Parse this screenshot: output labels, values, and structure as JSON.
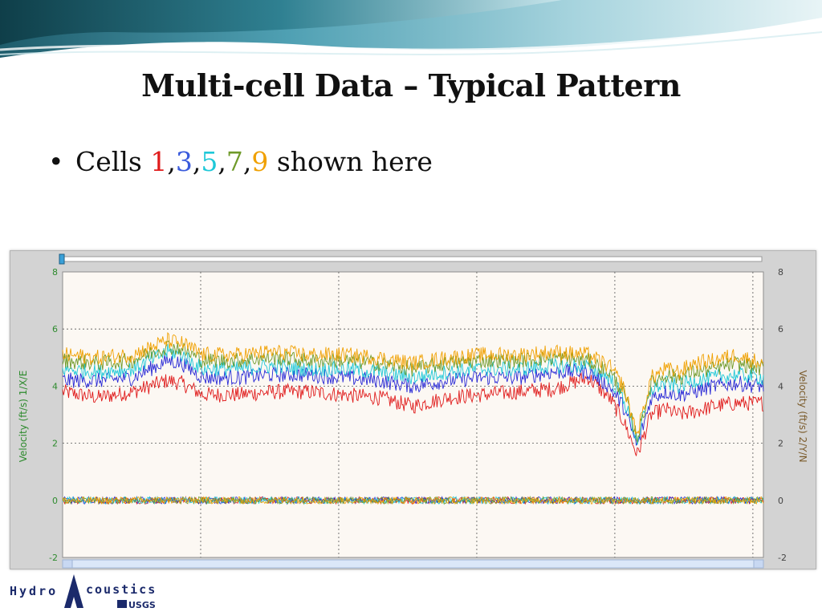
{
  "slide": {
    "title": "Multi-cell Data – Typical Pattern",
    "bullet": {
      "prefix": "Cells",
      "cells": [
        {
          "label": "1",
          "color": "#e01b1b"
        },
        {
          "label": "3",
          "color": "#3a5bdc"
        },
        {
          "label": "5",
          "color": "#1ec8d8"
        },
        {
          "label": "7",
          "color": "#6f9a2a"
        },
        {
          "label": "9",
          "color": "#f0a000"
        }
      ],
      "separator": ",",
      "suffix": "shown here"
    }
  },
  "logo": {
    "text_left": "Hydro",
    "text_right": "coustics",
    "agency": "USGS"
  },
  "chart_data": {
    "type": "line",
    "title": "",
    "ylabel_left": "Velocity (ft/s) 1/X/E",
    "ylabel_right": "Velocity (ft/s) 2/Y/N",
    "ylim": [
      -2,
      8
    ],
    "yticks": [
      -2,
      0,
      2,
      4,
      6,
      8
    ],
    "grid": true,
    "x": [
      0,
      0.05,
      0.1,
      0.15,
      0.17,
      0.2,
      0.25,
      0.3,
      0.35,
      0.4,
      0.45,
      0.5,
      0.55,
      0.6,
      0.65,
      0.7,
      0.75,
      0.78,
      0.8,
      0.82,
      0.84,
      0.86,
      0.88,
      0.9,
      0.93,
      0.96,
      1.0
    ],
    "series": [
      {
        "color": "#e01b1b",
        "values": [
          3.8,
          3.6,
          3.8,
          4.2,
          4.1,
          3.7,
          3.7,
          3.8,
          3.8,
          3.7,
          3.6,
          3.3,
          3.6,
          3.7,
          3.8,
          3.9,
          4.3,
          3.6,
          2.8,
          1.6,
          3.0,
          3.2,
          3.0,
          3.1,
          3.3,
          3.4,
          3.4
        ]
      },
      {
        "color": "#2929d6",
        "values": [
          4.2,
          4.2,
          4.3,
          4.9,
          4.8,
          4.3,
          4.3,
          4.4,
          4.4,
          4.3,
          4.2,
          4.0,
          4.2,
          4.3,
          4.3,
          4.5,
          4.5,
          4.0,
          3.3,
          1.9,
          3.6,
          3.8,
          3.7,
          3.8,
          4.0,
          4.1,
          4.0
        ]
      },
      {
        "color": "#1ec8d8",
        "values": [
          4.6,
          4.5,
          4.6,
          5.2,
          5.1,
          4.6,
          4.6,
          4.7,
          4.6,
          4.6,
          4.5,
          4.3,
          4.5,
          4.6,
          4.6,
          4.7,
          4.7,
          4.3,
          3.6,
          2.1,
          3.9,
          4.1,
          4.0,
          4.2,
          4.3,
          4.4,
          4.3
        ]
      },
      {
        "color": "#6f9a2a",
        "values": [
          4.9,
          4.8,
          4.9,
          5.4,
          5.3,
          4.9,
          4.9,
          5.0,
          4.9,
          4.9,
          4.8,
          4.6,
          4.8,
          4.9,
          4.9,
          5.0,
          4.9,
          4.5,
          3.8,
          2.2,
          4.1,
          4.4,
          4.3,
          4.5,
          4.6,
          4.8,
          4.6
        ]
      },
      {
        "color": "#f0a000",
        "values": [
          5.1,
          5.0,
          5.1,
          5.6,
          5.5,
          5.1,
          5.1,
          5.2,
          5.1,
          5.1,
          5.0,
          4.8,
          5.0,
          5.1,
          5.1,
          5.2,
          5.1,
          4.7,
          4.0,
          2.3,
          4.3,
          4.6,
          4.5,
          4.8,
          4.9,
          5.1,
          4.8
        ]
      }
    ],
    "y_component_level": 0.0
  }
}
